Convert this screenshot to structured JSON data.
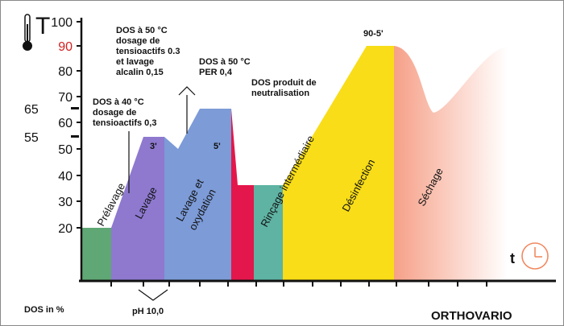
{
  "axis": {
    "y_symbol": "T",
    "x_symbol": "t",
    "y_ticks": [
      "100",
      "90",
      "80",
      "70",
      "60",
      "50",
      "40",
      "30",
      "20"
    ],
    "y_tick_highlight_color": "#d42020",
    "side_marks": [
      "65",
      "55"
    ]
  },
  "phases": [
    {
      "label": "Prélavage",
      "color": "#5fa774"
    },
    {
      "label": "Lavage",
      "color": "#8e79cf"
    },
    {
      "label": "Lavage et oxydation",
      "line1": "Lavage et",
      "line2": "oxydation",
      "color": "#7c9bd7"
    },
    {
      "label": "",
      "color": "#e3174b"
    },
    {
      "label": "Rinçage intermédiaire",
      "color": "#5fb3a3"
    },
    {
      "label": "Désinfection",
      "color": "#f8dd18"
    },
    {
      "label": "Séchage",
      "color": "#f6a088"
    }
  ],
  "times": {
    "lavage": "3'",
    "oxydation": "5'",
    "desinfection": "90-5'"
  },
  "notes": {
    "n1": [
      "DOS à 40 °C",
      "dosage de",
      "tensioactifs 0,3"
    ],
    "n2": [
      "DOS à 50 °C",
      "dosage de",
      "tensioactifs 0.3",
      "et lavage",
      "alcalin 0,15"
    ],
    "n3": [
      "DOS à 50 °C",
      "PER 0,4"
    ],
    "n4": [
      "DOS produit de",
      "neutralisation"
    ]
  },
  "footer": {
    "dos": "DOS in %",
    "ph": "pH 10,0",
    "brand": "ORTHOVARIO"
  },
  "icons": {
    "thermometer": "thermometer-icon",
    "clock": "clock-icon"
  }
}
